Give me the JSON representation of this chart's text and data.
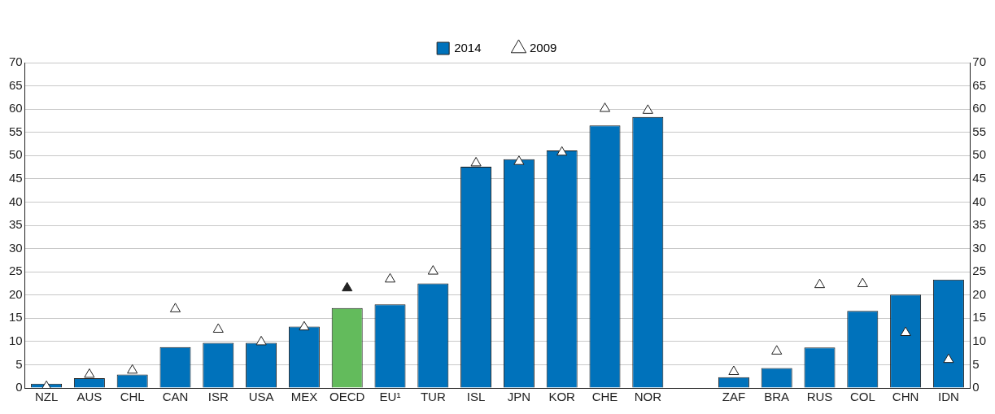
{
  "chart_data": {
    "type": "bar",
    "categories": [
      "NZL",
      "AUS",
      "CHL",
      "CAN",
      "ISR",
      "USA",
      "MEX",
      "OECD",
      "EU¹",
      "TUR",
      "ISL",
      "JPN",
      "KOR",
      "CHE",
      "NOR",
      null,
      "ZAF",
      "BRA",
      "RUS",
      "COL",
      "CHN",
      "IDN"
    ],
    "series": [
      {
        "name": "2014",
        "color": "#0072bb",
        "colors": [
          "#0072bb",
          "#0072bb",
          "#0072bb",
          "#0072bb",
          "#0072bb",
          "#0072bb",
          "#0072bb",
          "#63bb5c",
          "#0072bb",
          "#0072bb",
          "#0072bb",
          "#0072bb",
          "#0072bb",
          "#0072bb",
          "#0072bb",
          "#0072bb",
          "#0072bb",
          "#0072bb",
          "#0072bb",
          "#0072bb",
          "#0072bb",
          "#0072bb"
        ],
        "values": [
          0.9,
          2.1,
          2.9,
          8.8,
          9.7,
          9.7,
          13.2,
          17.2,
          18.0,
          22.5,
          47.6,
          49.2,
          51.1,
          56.5,
          58.3,
          null,
          2.3,
          4.3,
          8.7,
          16.6,
          20.1,
          23.3
        ]
      },
      {
        "name": "2009",
        "type": "scatter",
        "color": "#ffffff",
        "colors": [
          "#ffffff",
          "#ffffff",
          "#ffffff",
          "#ffffff",
          "#ffffff",
          "#ffffff",
          "#ffffff",
          "#222222",
          "#ffffff",
          "#ffffff",
          "#ffffff",
          "#ffffff",
          "#ffffff",
          "#ffffff",
          "#ffffff",
          "#ffffff",
          "#ffffff",
          "#ffffff",
          "#ffffff",
          "#ffffff",
          "#ffffff",
          "#ffffff"
        ],
        "values": [
          0.3,
          2.9,
          3.8,
          17.0,
          12.6,
          9.9,
          13.1,
          21.5,
          23.4,
          25.1,
          48.4,
          48.7,
          50.7,
          60.1,
          59.7,
          null,
          3.5,
          7.9,
          22.2,
          22.4,
          11.9,
          6.1
        ]
      }
    ],
    "ylim": [
      0,
      70
    ],
    "yticks": [
      0,
      5,
      10,
      15,
      20,
      25,
      30,
      35,
      40,
      45,
      50,
      55,
      60,
      65,
      70
    ],
    "y2lim": [
      0,
      70
    ],
    "y2ticks": [
      0,
      5,
      10,
      15,
      20,
      25,
      30,
      35,
      40,
      45,
      50,
      55,
      60,
      65,
      70
    ],
    "grid": "y",
    "legend": "top",
    "marker": "triangle"
  }
}
